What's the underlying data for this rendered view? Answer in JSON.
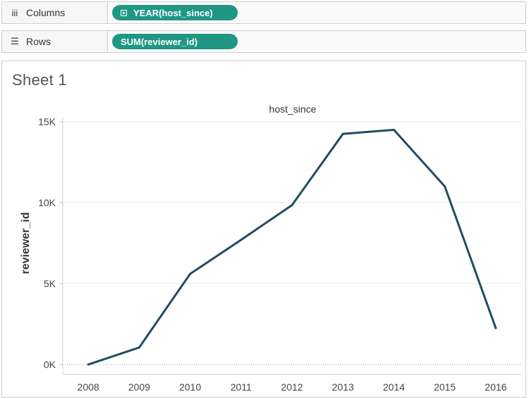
{
  "shelves": {
    "columns": {
      "label": "Columns",
      "icon": "columns-icon",
      "pill": "YEAR(host_since)"
    },
    "rows": {
      "label": "Rows",
      "icon": "rows-icon",
      "pill": "SUM(reviewer_id)"
    }
  },
  "colors": {
    "pill": "#1f9783",
    "line": "#1f4e5f",
    "gridline": "#e8e8e8"
  },
  "sheet": {
    "title": "Sheet 1",
    "header": "host_since"
  },
  "chart_data": {
    "type": "line",
    "title": "",
    "xlabel": "",
    "ylabel": "reviewer_id",
    "x": [
      2008,
      2009,
      2010,
      2011,
      2012,
      2013,
      2014,
      2015,
      2016
    ],
    "series": [
      {
        "values": [
          0,
          1050,
          5600,
          7700,
          9850,
          14250,
          14500,
          11000,
          2250
        ]
      }
    ],
    "ylim": [
      0,
      15000
    ],
    "y_ticks": [
      0,
      5000,
      10000,
      15000
    ],
    "y_tick_labels": [
      "0K",
      "5K",
      "10K",
      "15K"
    ],
    "x_tick_labels": [
      "2008",
      "2009",
      "2010",
      "2011",
      "2012",
      "2013",
      "2014",
      "2015",
      "2016"
    ],
    "grid": "horizontal",
    "zero_line": "dotted"
  }
}
